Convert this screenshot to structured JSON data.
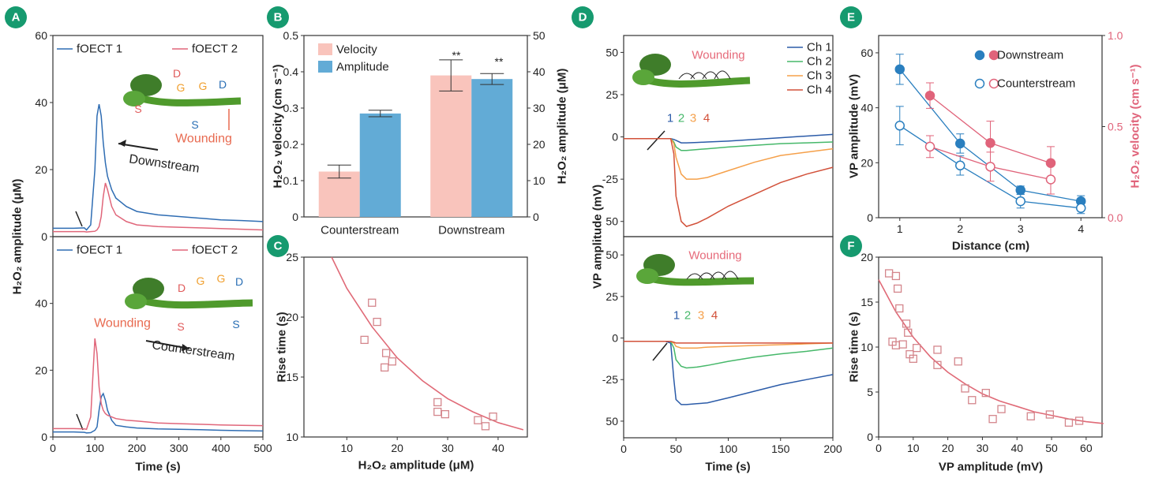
{
  "chart_data": [
    {
      "type": "line",
      "panel": "A",
      "ylabel": "H₂O₂ amplitude (μM)",
      "xlim": [
        0,
        500
      ],
      "ylim": [
        0,
        60
      ],
      "yticks": [
        0,
        20,
        40,
        60
      ],
      "x": [
        0,
        50,
        75,
        80,
        90,
        100,
        105,
        110,
        115,
        120,
        125,
        130,
        140,
        150,
        175,
        200,
        250,
        300,
        350,
        400,
        450,
        500
      ],
      "series": [
        {
          "name": "fOECT 1",
          "color": "#2f6db3",
          "values": [
            2.5,
            2.5,
            2.6,
            2.0,
            3.5,
            20,
            36,
            39.5,
            36,
            28,
            22,
            18,
            14,
            11.5,
            9,
            7.5,
            6.5,
            6,
            5.5,
            5,
            4.8,
            4.5
          ]
        },
        {
          "name": "fOECT 2",
          "color": "#e0667a",
          "values": [
            1.5,
            1.5,
            1.5,
            1.4,
            1.5,
            1.6,
            2,
            3,
            6,
            12,
            16,
            14,
            9,
            6.5,
            4.5,
            3.5,
            3,
            2.8,
            2.6,
            2.4,
            2.2,
            2
          ]
        }
      ],
      "annotations": [
        "D",
        "G",
        "G",
        "D",
        "S",
        "S",
        "Downstream",
        "Wounding"
      ]
    },
    {
      "type": "line",
      "xlabel": "Time (s)",
      "xlim": [
        0,
        500
      ],
      "ylim": [
        0,
        60
      ],
      "xticks": [
        0,
        100,
        200,
        300,
        400,
        500
      ],
      "yticks": [
        0,
        20,
        40
      ],
      "x": [
        0,
        50,
        75,
        80,
        90,
        100,
        105,
        110,
        115,
        120,
        125,
        130,
        140,
        150,
        175,
        200,
        250,
        300,
        350,
        400,
        450,
        500
      ],
      "series": [
        {
          "name": "fOECT 1",
          "color": "#2f6db3",
          "values": [
            1.5,
            1.5,
            1.4,
            1.2,
            1.3,
            2,
            3,
            8,
            12,
            13,
            11,
            8,
            5,
            3.5,
            3,
            2.7,
            2.4,
            2.3,
            2.2,
            2,
            1.9,
            1.8
          ]
        },
        {
          "name": "fOECT 2",
          "color": "#e0667a",
          "values": [
            2.5,
            2.5,
            2.4,
            2.3,
            6,
            29.5,
            25,
            15,
            10,
            8,
            7,
            6.5,
            6,
            5.5,
            5,
            4.8,
            4.2,
            4,
            3.8,
            3.6,
            3.5,
            3.4
          ]
        }
      ],
      "annotations": [
        "D",
        "G",
        "G",
        "D",
        "Wounding",
        "S",
        "S",
        "Counterstream"
      ]
    },
    {
      "type": "bar",
      "panel": "B",
      "ylabel": "H₂O₂ velocity (cm s⁻¹)",
      "y2label": "H₂O₂ amplitude (μM)",
      "categories": [
        "Counterstream",
        "Downstream"
      ],
      "ylim": [
        0,
        0.5
      ],
      "yticks": [
        0,
        0.1,
        0.2,
        0.3,
        0.4,
        0.5
      ],
      "y2lim": [
        0,
        50
      ],
      "y2ticks": [
        0,
        10,
        20,
        30,
        40,
        50
      ],
      "series": [
        {
          "name": "Velocity",
          "color": "#f9c4bc",
          "values": [
            0.125,
            0.39
          ],
          "errors": [
            0.018,
            0.043
          ]
        },
        {
          "name": "Amplitude",
          "color": "#62abd6",
          "axis": "y2",
          "values": [
            28.5,
            38
          ],
          "errors": [
            0.9,
            1.5
          ]
        }
      ],
      "annotations": [
        "**",
        "**"
      ]
    },
    {
      "type": "scatter",
      "panel": "C",
      "xlabel": "H₂O₂ amplitude (μM)",
      "ylabel": "Rise time (s)",
      "xlim": [
        1.5,
        45.8
      ],
      "ylim": [
        10,
        25
      ],
      "xticks": [
        10,
        20,
        30,
        40
      ],
      "yticks": [
        10,
        15,
        20,
        25
      ],
      "color": "#d4868c",
      "x": [
        13.5,
        15,
        16,
        17.5,
        17.8,
        19,
        28,
        28,
        29.5,
        36,
        37.5,
        39
      ],
      "values": [
        18.1,
        21.2,
        19.6,
        15.8,
        17,
        16.3,
        12.9,
        12.1,
        11.9,
        11.4,
        10.9,
        11.7
      ],
      "fit": {
        "color": "#e06a77",
        "x": [
          7,
          10,
          15,
          20,
          25,
          30,
          35,
          40,
          45
        ],
        "values": [
          25,
          22.4,
          19.2,
          16.6,
          14.7,
          13.2,
          12.1,
          11.2,
          10.6
        ]
      }
    },
    {
      "type": "line",
      "panel": "D",
      "ylabel": "VP amplitude (mV)",
      "xlim": [
        0,
        200
      ],
      "ylim": [
        -59,
        60
      ],
      "yticks": [
        50,
        25,
        0,
        -25,
        {
          "value": -50,
          "label": "50"
        }
      ],
      "x": [
        0,
        20,
        40,
        45,
        48,
        50,
        55,
        60,
        70,
        80,
        100,
        125,
        150,
        175,
        200
      ],
      "series": [
        {
          "name": "Ch 1",
          "color": "#2b5ba8",
          "values": [
            -1,
            -1,
            -1,
            -1,
            -1.5,
            -2,
            -3.5,
            -3.5,
            -3.3,
            -3,
            -2.5,
            -1.5,
            -0.5,
            0.5,
            1.5
          ]
        },
        {
          "name": "Ch 2",
          "color": "#46b86a",
          "values": [
            -1,
            -1,
            -1,
            -1,
            -3,
            -6,
            -8,
            -8,
            -7.5,
            -7,
            -6,
            -5,
            -4,
            -3.5,
            -3
          ]
        },
        {
          "name": "Ch 3",
          "color": "#f5a04a",
          "values": [
            -1,
            -1,
            -1,
            -1,
            -4,
            -12,
            -22,
            -25,
            -25,
            -24,
            -20,
            -15,
            -11,
            -9,
            -7
          ]
        },
        {
          "name": "Ch 4",
          "color": "#d2513a",
          "values": [
            -1,
            -1,
            -1,
            -1,
            -10,
            -35,
            -50,
            -53,
            -51,
            -48,
            -41,
            -34,
            -27,
            -22,
            -18
          ]
        }
      ],
      "annotations": [
        "Wounding",
        "1",
        "2",
        "3",
        "4"
      ]
    },
    {
      "type": "line",
      "xlabel": "Time (s)",
      "xlim": [
        0,
        200
      ],
      "ylim": [
        -60,
        61
      ],
      "xticks": [
        0,
        50,
        100,
        150,
        200
      ],
      "yticks": [
        50,
        25,
        0,
        -25,
        {
          "value": -50,
          "label": "50"
        }
      ],
      "x": [
        0,
        20,
        40,
        45,
        48,
        50,
        55,
        60,
        70,
        80,
        100,
        125,
        150,
        175,
        200
      ],
      "series": [
        {
          "color": "#2b5ba8",
          "values": [
            -2,
            -2,
            -2,
            -3,
            -25,
            -37,
            -40,
            -40,
            -39.5,
            -39,
            -36,
            -32,
            -28,
            -25,
            -22
          ]
        },
        {
          "color": "#46b86a",
          "values": [
            -2,
            -2,
            -2,
            -2,
            -6,
            -13,
            -17,
            -18,
            -17.5,
            -16.5,
            -14,
            -11.5,
            -9.5,
            -8,
            -6
          ]
        },
        {
          "color": "#f5a04a",
          "values": [
            -2,
            -2,
            -2,
            -2,
            -3,
            -5,
            -6,
            -6,
            -6,
            -5.5,
            -5,
            -4.5,
            -4,
            -3.5,
            -3
          ]
        },
        {
          "color": "#d2513a",
          "values": [
            -2,
            -2,
            -2,
            -2,
            -2.5,
            -3,
            -3,
            -3,
            -3,
            -3,
            -3,
            -3,
            -3,
            -3,
            -3
          ]
        }
      ],
      "annotations": [
        "Wounding",
        "1",
        "2",
        "3",
        "4"
      ]
    },
    {
      "type": "errorline",
      "panel": "E",
      "xlabel": "Distance (cm)",
      "ylabel": "VP amplitude (mV)",
      "y2label": "H₂O₂ velocity (cm s⁻¹)",
      "y2label_color": "#e0637a",
      "xlim": [
        0.65,
        4.35
      ],
      "ylim": [
        0,
        66.3
      ],
      "y2lim": [
        0,
        1
      ],
      "xticks": [
        1,
        2,
        3,
        4
      ],
      "yticks": [
        0,
        20,
        40,
        60
      ],
      "y2ticks": [
        {
          "value": 0,
          "label": "0.0"
        },
        0.5,
        {
          "value": 1,
          "label": "1.0"
        }
      ],
      "groups": [
        {
          "name": "Downstream",
          "filled": true,
          "series": [
            {
              "color": "#2a7fbf",
              "x": [
                1,
                2,
                3,
                4
              ],
              "values": [
                54,
                27,
                10,
                6
              ],
              "errors": [
                5.5,
                3.5,
                1.5,
                2
              ]
            },
            {
              "color": "#e0637a",
              "axis": "y2",
              "x": [
                1.5,
                2.5,
                3.5
              ],
              "values": [
                0.67,
                0.41,
                0.3
              ],
              "errors": [
                0.07,
                0.12,
                0.09
              ]
            }
          ]
        },
        {
          "name": "Counterstream",
          "filled": false,
          "series": [
            {
              "color": "#2a7fbf",
              "x": [
                1,
                2,
                3,
                4
              ],
              "values": [
                33.5,
                19,
                6,
                3.5
              ],
              "errors": [
                7,
                3.5,
                2.5,
                2
              ]
            },
            {
              "color": "#e0637a",
              "axis": "y2",
              "x": [
                1.5,
                2.5,
                3.5
              ],
              "values": [
                0.39,
                0.28,
                0.21
              ],
              "errors": [
                0.06,
                0.08,
                0.08
              ]
            }
          ]
        }
      ]
    },
    {
      "type": "scatter",
      "panel": "F",
      "xlabel": "VP amplitude (mV)",
      "ylabel": "Rise time (s)",
      "xlim": [
        0,
        64.6
      ],
      "ylim": [
        0,
        20
      ],
      "xticks": [
        0,
        10,
        20,
        30,
        40,
        50,
        60
      ],
      "yticks": [
        0,
        5,
        10,
        15,
        20
      ],
      "color": "#d4868c",
      "x": [
        3,
        5,
        5.5,
        6,
        4,
        5,
        7,
        8,
        8.5,
        9,
        10,
        11,
        17,
        17,
        23,
        25,
        27,
        31,
        33,
        35.5,
        44,
        49.5,
        55,
        58
      ],
      "values": [
        18.2,
        17.9,
        16.5,
        14.3,
        10.6,
        10.2,
        10.3,
        12.6,
        11.6,
        9.2,
        8.7,
        9.9,
        9.7,
        8,
        8.4,
        5.4,
        4.1,
        4.9,
        2,
        3.1,
        2.3,
        2.5,
        1.6,
        1.8
      ],
      "fit": {
        "color": "#e06a77",
        "x": [
          0,
          5,
          10,
          15,
          20,
          25,
          30,
          35,
          40,
          45,
          50,
          55,
          60,
          65
        ],
        "values": [
          17.5,
          13.9,
          11.1,
          8.9,
          7.2,
          5.9,
          4.8,
          4.0,
          3.4,
          2.8,
          2.4,
          2.0,
          1.7,
          1.5
        ]
      }
    }
  ]
}
